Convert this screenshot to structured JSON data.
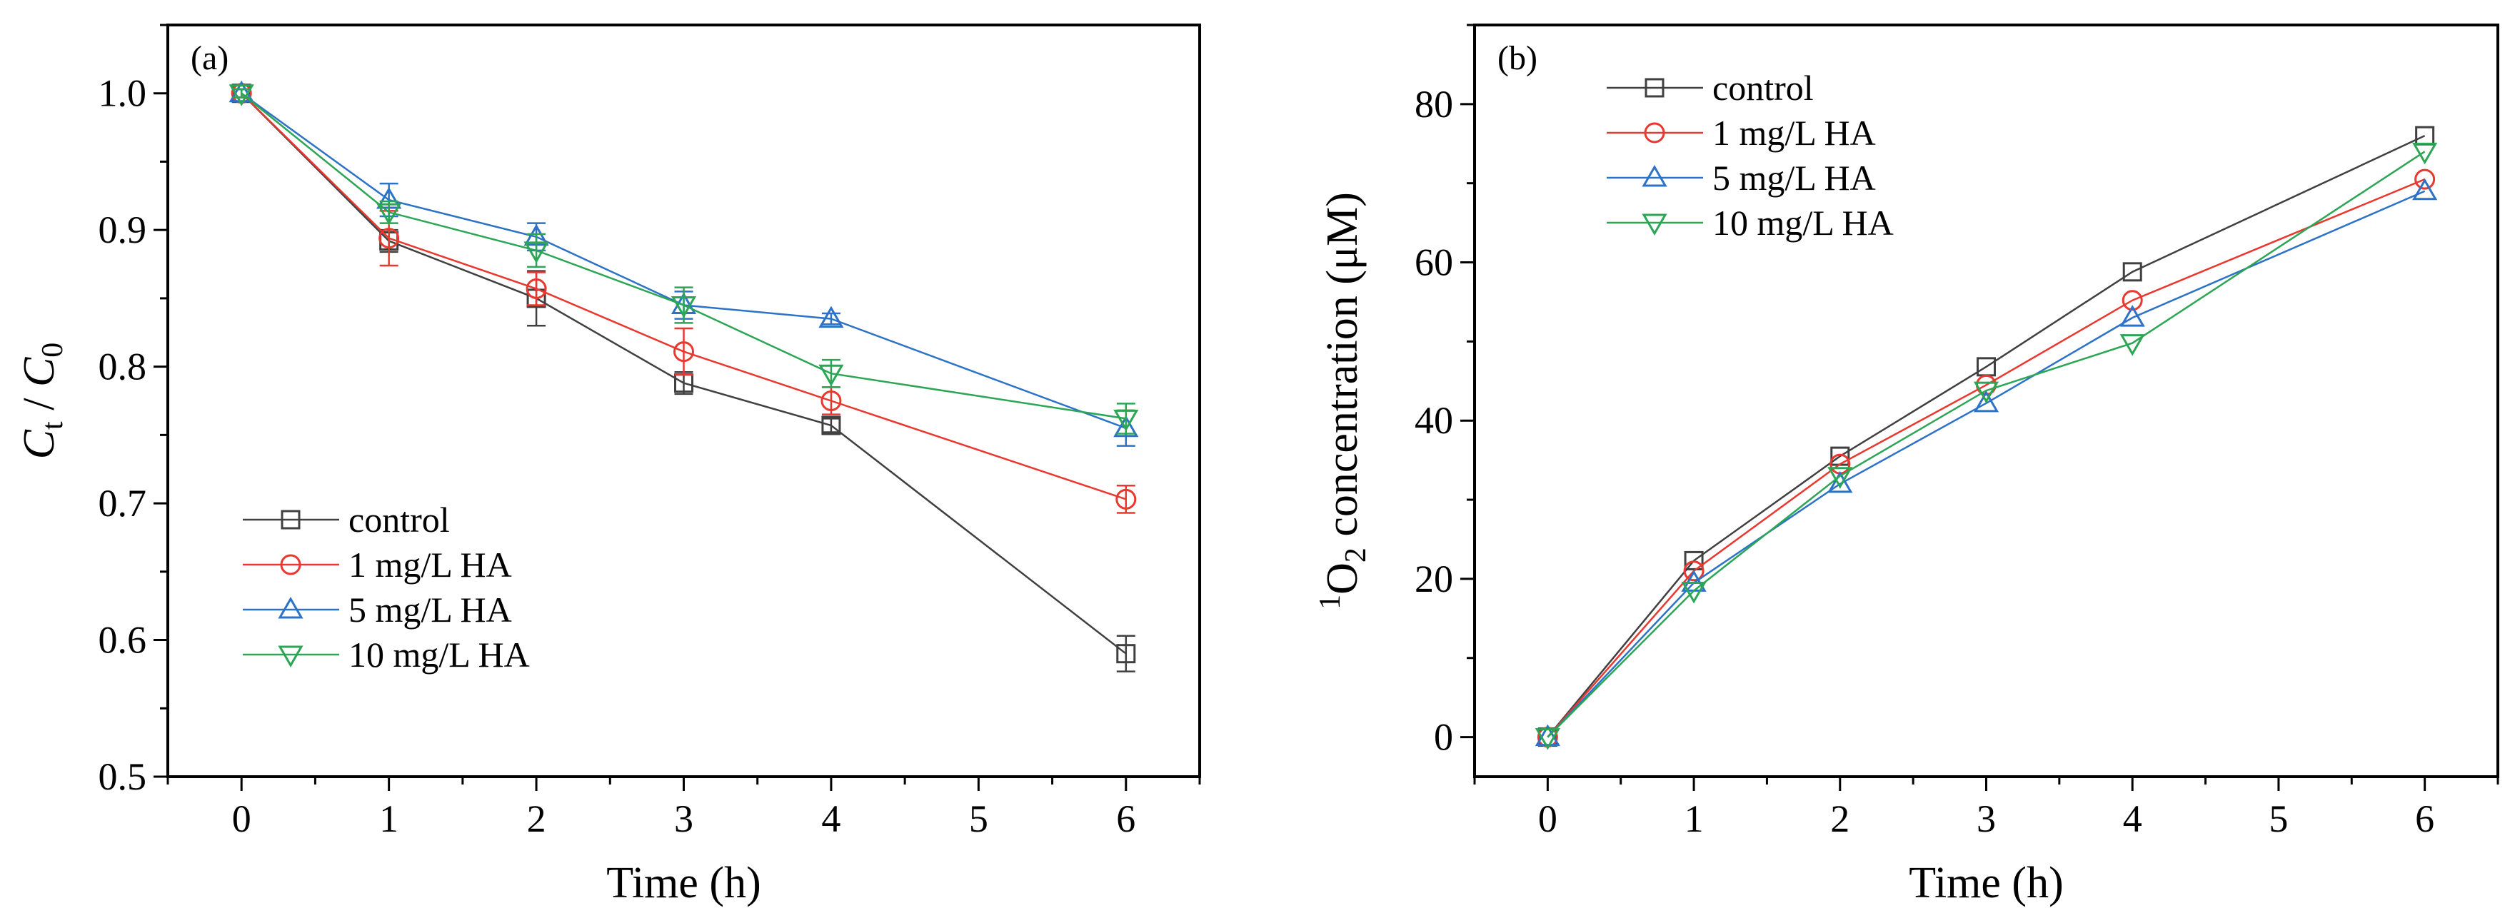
{
  "chart_data": [
    {
      "type": "line",
      "panel_label": "(a)",
      "title": "",
      "xlabel": "Time (h)",
      "ylabel_main": "C",
      "ylabel_sub_t": "t",
      "ylabel_sep": " / ",
      "ylabel_sub_0": "0",
      "xlim": [
        -0.5,
        6.5
      ],
      "ylim": [
        0.5,
        1.05
      ],
      "xticks": [
        0,
        1,
        2,
        3,
        4,
        5,
        6
      ],
      "yticks": [
        0.5,
        0.6,
        0.7,
        0.8,
        0.9,
        1.0
      ],
      "ytick_labels": [
        "0.5",
        "0.6",
        "0.7",
        "0.8",
        "0.9",
        "1.0"
      ],
      "legend_position": "bottom-left",
      "series": [
        {
          "name": "control",
          "color": "#404040",
          "marker": "square",
          "x": [
            0,
            1,
            2,
            3,
            4,
            6
          ],
          "y": [
            1.0,
            0.892,
            0.85,
            0.788,
            0.757,
            0.59
          ],
          "err": [
            0.003,
            0.008,
            0.02,
            0.008,
            0.005,
            0.013
          ]
        },
        {
          "name": "1 mg/L HA",
          "color": "#e8382f",
          "marker": "circle",
          "x": [
            0,
            1,
            2,
            3,
            4,
            6
          ],
          "y": [
            1.0,
            0.894,
            0.857,
            0.811,
            0.775,
            0.703
          ],
          "err": [
            0.003,
            0.02,
            0.012,
            0.017,
            0.01,
            0.01
          ]
        },
        {
          "name": "5 mg/L HA",
          "color": "#2c72c7",
          "marker": "triangle-up",
          "x": [
            0,
            1,
            2,
            3,
            4,
            6
          ],
          "y": [
            1.0,
            0.922,
            0.895,
            0.845,
            0.835,
            0.755
          ],
          "err": [
            0.003,
            0.012,
            0.01,
            0.01,
            0.004,
            0.013
          ]
        },
        {
          "name": "10 mg/L HA",
          "color": "#2ca555",
          "marker": "triangle-down",
          "x": [
            0,
            1,
            2,
            3,
            4,
            6
          ],
          "y": [
            1.0,
            0.913,
            0.885,
            0.845,
            0.795,
            0.762
          ],
          "err": [
            0.003,
            0.008,
            0.012,
            0.013,
            0.01,
            0.011
          ]
        }
      ]
    },
    {
      "type": "line",
      "panel_label": "(b)",
      "title": "",
      "xlabel": "Time (h)",
      "ylabel_sup": "1",
      "ylabel_main": "O",
      "ylabel_sub": "2",
      "ylabel_rest": " concentration (μM)",
      "xlim": [
        -0.5,
        6.5
      ],
      "ylim": [
        -5,
        90
      ],
      "xticks": [
        0,
        1,
        2,
        3,
        4,
        5,
        6
      ],
      "yticks": [
        0,
        20,
        40,
        60,
        80
      ],
      "ytick_labels": [
        "0",
        "20",
        "40",
        "60",
        "80"
      ],
      "legend_position": "top-left",
      "series": [
        {
          "name": "control",
          "color": "#404040",
          "marker": "square",
          "x": [
            0,
            1,
            2,
            3,
            4,
            6
          ],
          "y": [
            0,
            22.3,
            35.5,
            46.8,
            58.8,
            76.0
          ]
        },
        {
          "name": "1 mg/L HA",
          "color": "#e8382f",
          "marker": "circle",
          "x": [
            0,
            1,
            2,
            3,
            4,
            6
          ],
          "y": [
            0,
            21.0,
            34.5,
            44.5,
            55.2,
            70.5
          ]
        },
        {
          "name": "5 mg/L HA",
          "color": "#2c72c7",
          "marker": "triangle-up",
          "x": [
            0,
            1,
            2,
            3,
            4,
            6
          ],
          "y": [
            0,
            19.5,
            32.0,
            42.2,
            53.0,
            69.0
          ]
        },
        {
          "name": "10 mg/L HA",
          "color": "#2ca555",
          "marker": "triangle-down",
          "x": [
            0,
            1,
            2,
            3,
            4,
            6
          ],
          "y": [
            0,
            18.5,
            33.0,
            43.8,
            49.8,
            74.0
          ]
        }
      ]
    }
  ]
}
